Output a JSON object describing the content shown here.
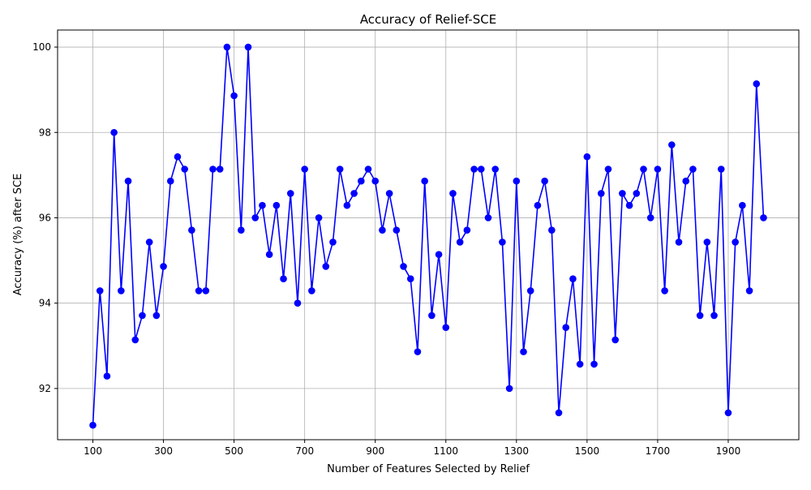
{
  "chart_data": {
    "type": "line",
    "title": "Accuracy of Relief-SCE",
    "xlabel": "Number of Features Selected by Relief",
    "ylabel": "Accuracy (%) after SCE",
    "xlim": [
      0,
      2100
    ],
    "ylim": [
      90.8,
      100.4
    ],
    "xticks": [
      100,
      300,
      500,
      700,
      900,
      1100,
      1300,
      1500,
      1700,
      1900
    ],
    "yticks": [
      92,
      94,
      96,
      98,
      100
    ],
    "grid": true,
    "line_color": "#0000ff",
    "marker_color": "#0000ff",
    "grid_color": "#b0b0b0",
    "x": [
      100,
      120,
      140,
      160,
      180,
      200,
      220,
      240,
      260,
      280,
      300,
      320,
      340,
      360,
      380,
      400,
      420,
      440,
      460,
      480,
      500,
      520,
      540,
      560,
      580,
      600,
      620,
      640,
      660,
      680,
      700,
      720,
      740,
      760,
      780,
      800,
      820,
      840,
      860,
      880,
      900,
      920,
      940,
      960,
      980,
      1000,
      1020,
      1040,
      1060,
      1080,
      1100,
      1120,
      1140,
      1160,
      1180,
      1200,
      1220,
      1240,
      1260,
      1280,
      1300,
      1320,
      1340,
      1360,
      1380,
      1400,
      1420,
      1440,
      1460,
      1480,
      1500,
      1520,
      1540,
      1560,
      1580,
      1600,
      1620,
      1640,
      1660,
      1680,
      1700,
      1720,
      1740,
      1760,
      1780,
      1800,
      1820,
      1840,
      1860,
      1880,
      1900,
      1920,
      1940,
      1960,
      1980,
      2000
    ],
    "y": [
      91.14,
      94.29,
      92.29,
      98.0,
      94.29,
      96.86,
      93.14,
      93.71,
      95.43,
      93.71,
      94.86,
      96.86,
      97.43,
      97.14,
      95.71,
      94.29,
      94.29,
      97.14,
      97.14,
      100.0,
      98.86,
      95.71,
      100.0,
      96.0,
      96.29,
      95.14,
      96.29,
      94.57,
      96.57,
      94.0,
      97.14,
      94.29,
      96.0,
      94.86,
      95.43,
      97.14,
      96.29,
      96.57,
      96.86,
      97.14,
      96.86,
      95.71,
      96.57,
      95.71,
      94.86,
      94.57,
      92.86,
      96.86,
      93.71,
      95.14,
      93.43,
      96.57,
      95.43,
      95.71,
      97.14,
      97.14,
      96.0,
      97.14,
      95.43,
      92.0,
      96.86,
      92.86,
      94.29,
      96.29,
      96.86,
      95.71,
      91.43,
      93.43,
      94.57,
      92.57,
      97.43,
      92.57,
      96.57,
      97.14,
      93.14,
      96.57,
      96.29,
      96.57,
      97.14,
      96.0,
      97.14,
      94.29,
      97.71,
      95.43,
      96.86,
      97.14,
      93.71,
      95.43,
      93.71,
      97.14,
      91.43,
      95.43,
      96.29,
      94.29,
      99.14,
      96.0
    ]
  }
}
